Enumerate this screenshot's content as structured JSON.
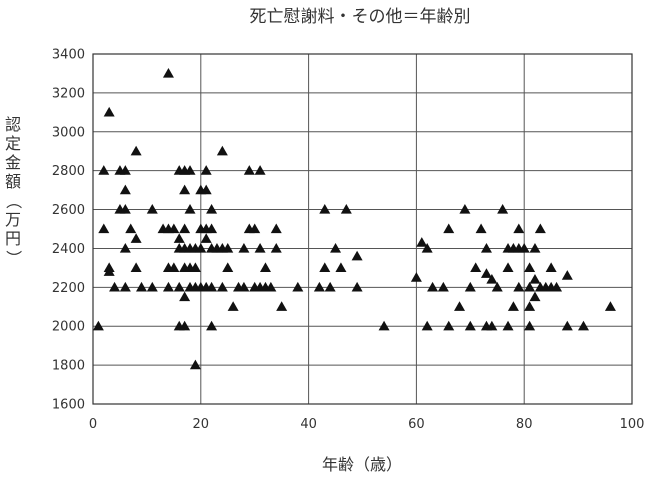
{
  "chart_data": {
    "type": "scatter",
    "title": "死亡慰謝料・その他＝年齢別",
    "xlabel": "年齢（歳）",
    "ylabel": "認定金額（万円）",
    "xlim": [
      0,
      100
    ],
    "ylim": [
      1600,
      3400
    ],
    "x_ticks": [
      0,
      20,
      40,
      60,
      80,
      100
    ],
    "y_ticks": [
      1600,
      1800,
      2000,
      2200,
      2400,
      2600,
      2800,
      3000,
      3200,
      3400
    ],
    "grid": true,
    "marker": "triangle",
    "marker_color": "#111111",
    "points": [
      [
        14,
        3300
      ],
      [
        3,
        3100
      ],
      [
        8,
        2900
      ],
      [
        24,
        2900
      ],
      [
        2,
        2800
      ],
      [
        5,
        2800
      ],
      [
        6,
        2800
      ],
      [
        16,
        2800
      ],
      [
        17,
        2800
      ],
      [
        18,
        2800
      ],
      [
        21,
        2800
      ],
      [
        29,
        2800
      ],
      [
        31,
        2800
      ],
      [
        6,
        2700
      ],
      [
        17,
        2700
      ],
      [
        20,
        2700
      ],
      [
        21,
        2700
      ],
      [
        5,
        2600
      ],
      [
        6,
        2600
      ],
      [
        11,
        2600
      ],
      [
        18,
        2600
      ],
      [
        22,
        2600
      ],
      [
        43,
        2600
      ],
      [
        47,
        2600
      ],
      [
        69,
        2600
      ],
      [
        76,
        2600
      ],
      [
        2,
        2500
      ],
      [
        7,
        2500
      ],
      [
        13,
        2500
      ],
      [
        14,
        2500
      ],
      [
        15,
        2500
      ],
      [
        17,
        2500
      ],
      [
        20,
        2500
      ],
      [
        21,
        2500
      ],
      [
        22,
        2500
      ],
      [
        29,
        2500
      ],
      [
        30,
        2500
      ],
      [
        34,
        2500
      ],
      [
        66,
        2500
      ],
      [
        72,
        2500
      ],
      [
        79,
        2500
      ],
      [
        83,
        2500
      ],
      [
        8,
        2450
      ],
      [
        16,
        2450
      ],
      [
        21,
        2450
      ],
      [
        23,
        2400
      ],
      [
        6,
        2400
      ],
      [
        16,
        2400
      ],
      [
        17,
        2400
      ],
      [
        18,
        2400
      ],
      [
        19,
        2400
      ],
      [
        20,
        2400
      ],
      [
        22,
        2400
      ],
      [
        24,
        2400
      ],
      [
        25,
        2400
      ],
      [
        28,
        2400
      ],
      [
        31,
        2400
      ],
      [
        34,
        2400
      ],
      [
        45,
        2400
      ],
      [
        62,
        2400
      ],
      [
        73,
        2400
      ],
      [
        77,
        2400
      ],
      [
        78,
        2400
      ],
      [
        79,
        2400
      ],
      [
        80,
        2400
      ],
      [
        82,
        2400
      ],
      [
        61,
        2430
      ],
      [
        49,
        2360
      ],
      [
        3,
        2300
      ],
      [
        8,
        2300
      ],
      [
        14,
        2300
      ],
      [
        15,
        2300
      ],
      [
        17,
        2300
      ],
      [
        18,
        2300
      ],
      [
        19,
        2300
      ],
      [
        25,
        2300
      ],
      [
        32,
        2300
      ],
      [
        43,
        2300
      ],
      [
        46,
        2300
      ],
      [
        71,
        2300
      ],
      [
        77,
        2300
      ],
      [
        81,
        2300
      ],
      [
        85,
        2300
      ],
      [
        3,
        2280
      ],
      [
        73,
        2270
      ],
      [
        88,
        2260
      ],
      [
        60,
        2250
      ],
      [
        74,
        2240
      ],
      [
        82,
        2240
      ],
      [
        4,
        2200
      ],
      [
        6,
        2200
      ],
      [
        9,
        2200
      ],
      [
        11,
        2200
      ],
      [
        14,
        2200
      ],
      [
        16,
        2200
      ],
      [
        18,
        2200
      ],
      [
        19,
        2200
      ],
      [
        20,
        2200
      ],
      [
        21,
        2200
      ],
      [
        22,
        2200
      ],
      [
        24,
        2200
      ],
      [
        27,
        2200
      ],
      [
        28,
        2200
      ],
      [
        30,
        2200
      ],
      [
        31,
        2200
      ],
      [
        32,
        2200
      ],
      [
        33,
        2200
      ],
      [
        38,
        2200
      ],
      [
        42,
        2200
      ],
      [
        44,
        2200
      ],
      [
        49,
        2200
      ],
      [
        63,
        2200
      ],
      [
        65,
        2200
      ],
      [
        70,
        2200
      ],
      [
        75,
        2200
      ],
      [
        79,
        2200
      ],
      [
        81,
        2200
      ],
      [
        83,
        2200
      ],
      [
        84,
        2200
      ],
      [
        85,
        2200
      ],
      [
        86,
        2200
      ],
      [
        17,
        2150
      ],
      [
        82,
        2150
      ],
      [
        26,
        2100
      ],
      [
        35,
        2100
      ],
      [
        68,
        2100
      ],
      [
        78,
        2100
      ],
      [
        81,
        2100
      ],
      [
        96,
        2100
      ],
      [
        1,
        2000
      ],
      [
        16,
        2000
      ],
      [
        17,
        2000
      ],
      [
        22,
        2000
      ],
      [
        54,
        2000
      ],
      [
        62,
        2000
      ],
      [
        66,
        2000
      ],
      [
        70,
        2000
      ],
      [
        73,
        2000
      ],
      [
        74,
        2000
      ],
      [
        77,
        2000
      ],
      [
        81,
        2000
      ],
      [
        88,
        2000
      ],
      [
        91,
        2000
      ],
      [
        19,
        1800
      ]
    ]
  }
}
